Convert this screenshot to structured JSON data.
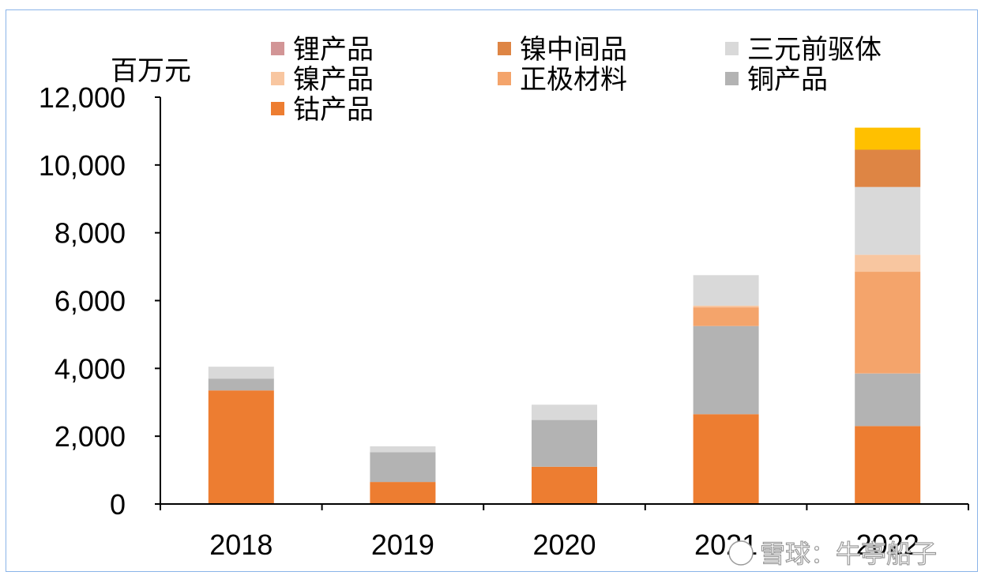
{
  "chart_data": {
    "type": "bar",
    "stacked": true,
    "ylabel": "百万元",
    "ylim": [
      0,
      12000
    ],
    "yticks": [
      0,
      2000,
      4000,
      6000,
      8000,
      10000,
      12000
    ],
    "ytick_labels": [
      "0",
      "2,000",
      "4,000",
      "6,000",
      "8,000",
      "10,000",
      "12,000"
    ],
    "categories": [
      "2018",
      "2019",
      "2020",
      "2021",
      "2022"
    ],
    "legend_position": "top",
    "series": [
      {
        "name": "钴产品",
        "color": "#ed7d31",
        "values": [
          3350,
          650,
          1100,
          2650,
          2300
        ]
      },
      {
        "name": "铜产品",
        "color": "#b3b3b3",
        "values": [
          350,
          880,
          1380,
          2600,
          1550
        ]
      },
      {
        "name": "正极材料",
        "color": "#f4a46b",
        "values": [
          0,
          0,
          0,
          550,
          3000
        ]
      },
      {
        "name": "镍产品",
        "color": "#f8c6a0",
        "values": [
          0,
          0,
          0,
          50,
          500
        ]
      },
      {
        "name": "三元前驱体",
        "color": "#d9d9d9",
        "values": [
          350,
          170,
          450,
          900,
          2000
        ]
      },
      {
        "name": "镍中间品",
        "color": "#de8544",
        "values": [
          0,
          0,
          0,
          0,
          1100
        ]
      },
      {
        "name": "锂产品",
        "color": "#d29596",
        "values": [
          0,
          0,
          0,
          0,
          0
        ]
      },
      {
        "name": "",
        "color": "#ffc000",
        "values": [
          0,
          0,
          0,
          0,
          650
        ]
      }
    ],
    "legend": [
      {
        "name": "锂产品",
        "color": "#d29596"
      },
      {
        "name": "镍中间品",
        "color": "#de8544"
      },
      {
        "name": "三元前驱体",
        "color": "#d9d9d9"
      },
      {
        "name": "镍产品",
        "color": "#f8c6a0"
      },
      {
        "name": "正极材料",
        "color": "#f4a46b"
      },
      {
        "name": "铜产品",
        "color": "#b3b3b3"
      },
      {
        "name": "钴产品",
        "color": "#ed7d31"
      }
    ]
  },
  "watermark": {
    "text": "雪球：牛亭船子"
  }
}
